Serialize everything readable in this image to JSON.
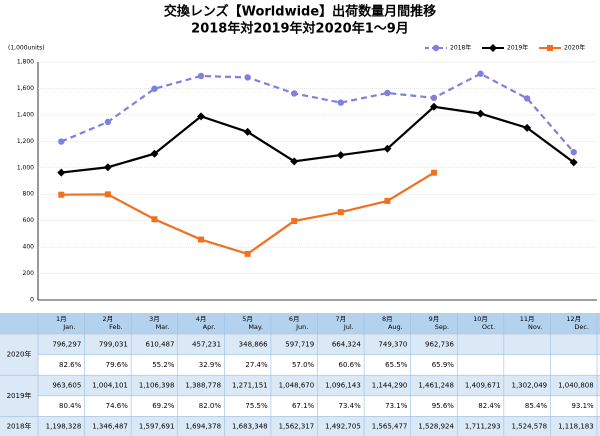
{
  "chart_data": {
    "type": "line",
    "title": "交換レンズ【Worldwide】出荷数量月間推移",
    "subtitle": "2018年対2019年対2020年1～9月",
    "y_axis_label": "(1,000units)",
    "ylim": [
      0,
      1800
    ],
    "yticks": [
      0,
      200,
      400,
      600,
      800,
      {
        "value": 1000,
        "label": "1,000"
      },
      {
        "value": 1200,
        "label": "1,200"
      },
      {
        "value": 1400,
        "label": "1,400"
      },
      {
        "value": 1600,
        "label": "1,600"
      },
      {
        "value": 1800,
        "label": "1,800"
      }
    ],
    "grid": true,
    "legend": "top-right",
    "series": [
      {
        "name": "2018年",
        "color": "#8080e0",
        "dashed": true,
        "marker": "circle",
        "values": [
          1198.328,
          1346.487,
          1597.691,
          1694.378,
          1683.348,
          1562.317,
          1492.705,
          1565.477,
          1528.924,
          1711.293,
          1524.578,
          1118.183
        ]
      },
      {
        "name": "2019年",
        "color": "#000000",
        "marker": "diamond",
        "values": [
          963.605,
          1004.101,
          1106.398,
          1388.778,
          1271.151,
          1048.67,
          1096.143,
          1144.29,
          1461.248,
          1409.671,
          1302.049,
          1040.808
        ]
      },
      {
        "name": "2020年",
        "color": "#f07020",
        "marker": "square",
        "values": [
          796.297,
          799.031,
          610.487,
          457.231,
          348.866,
          597.719,
          664.324,
          749.37,
          962.736,
          null,
          null,
          null
        ]
      }
    ]
  },
  "table": {
    "header": [
      {
        "ja": "1月",
        "en": "Jan."
      },
      {
        "ja": "2月",
        "en": "Feb."
      },
      {
        "ja": "3月",
        "en": "Mar."
      },
      {
        "ja": "4月",
        "en": "Apr."
      },
      {
        "ja": "5月",
        "en": "May."
      },
      {
        "ja": "6月",
        "en": "Jun."
      },
      {
        "ja": "7月",
        "en": "Jul."
      },
      {
        "ja": "8月",
        "en": "Aug."
      },
      {
        "ja": "9月",
        "en": "Sep."
      },
      {
        "ja": "10月",
        "en": "Oct."
      },
      {
        "ja": "11月",
        "en": "Nov."
      },
      {
        "ja": "12月",
        "en": "Dec."
      }
    ],
    "rows": [
      {
        "label": "2020年",
        "units": [
          "796,297",
          "799,031",
          "610,487",
          "457,231",
          "348,866",
          "597,719",
          "664,324",
          "749,370",
          "962,736",
          null,
          null,
          null
        ],
        "ratio": [
          "82.6%",
          "79.6%",
          "55.2%",
          "32.9%",
          "27.4%",
          "57.0%",
          "60.6%",
          "65.5%",
          "65.9%",
          null,
          null,
          null
        ]
      },
      {
        "label": "2019年",
        "units": [
          "963,605",
          "1,004,101",
          "1,106,398",
          "1,388,778",
          "1,271,151",
          "1,048,670",
          "1,096,143",
          "1,144,290",
          "1,461,248",
          "1,409,671",
          "1,302,049",
          "1,040,808"
        ],
        "ratio": [
          "80.4%",
          "74.6%",
          "69.2%",
          "82.0%",
          "75.5%",
          "67.1%",
          "73.4%",
          "73.1%",
          "95.6%",
          "82.4%",
          "85.4%",
          "93.1%"
        ]
      },
      {
        "label": "2018年",
        "units": [
          "1,198,328",
          "1,346,487",
          "1,597,691",
          "1,694,378",
          "1,683,348",
          "1,562,317",
          "1,492,705",
          "1,565,477",
          "1,528,924",
          "1,711,293",
          "1,524,578",
          "1,118,183"
        ]
      }
    ]
  }
}
